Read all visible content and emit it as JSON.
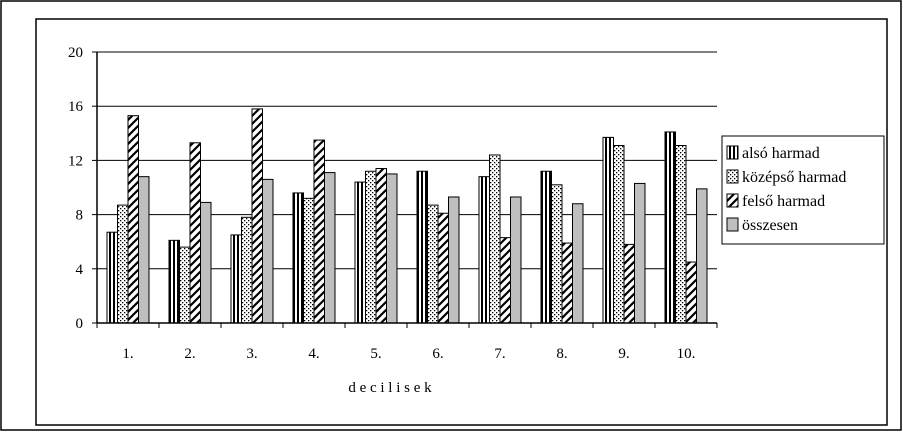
{
  "chart_data": {
    "type": "bar",
    "xlabel": "d e c i l i s e k",
    "ylabel": "",
    "ylim": [
      0,
      20
    ],
    "yticks": [
      0,
      4,
      8,
      12,
      16,
      20
    ],
    "grid": "horizontal",
    "legend_position": "right",
    "categories": [
      "1.",
      "2.",
      "3.",
      "4.",
      "5.",
      "6.",
      "7.",
      "8.",
      "9.",
      "10."
    ],
    "series": [
      {
        "name": "alsó harmad",
        "pattern": "vertical-stripes",
        "values": [
          6.7,
          6.1,
          6.5,
          9.6,
          10.4,
          11.2,
          10.8,
          11.2,
          13.7,
          14.1
        ]
      },
      {
        "name": "középső harmad",
        "pattern": "dots",
        "values": [
          8.7,
          5.6,
          7.8,
          9.2,
          11.2,
          8.7,
          12.4,
          10.2,
          13.1,
          13.1
        ]
      },
      {
        "name": "felső harmad",
        "pattern": "diagonal-waves",
        "values": [
          15.3,
          13.3,
          15.8,
          13.5,
          11.4,
          8.1,
          6.3,
          5.9,
          5.8,
          4.5
        ]
      },
      {
        "name": "összesen",
        "pattern": "solid-gray",
        "values": [
          10.8,
          8.9,
          10.6,
          11.1,
          11.0,
          9.3,
          9.3,
          8.8,
          10.3,
          9.9
        ]
      }
    ],
    "colors": {
      "border": "#000000",
      "gray_fill": "#bfbfbf",
      "background": "#ffffff"
    }
  }
}
